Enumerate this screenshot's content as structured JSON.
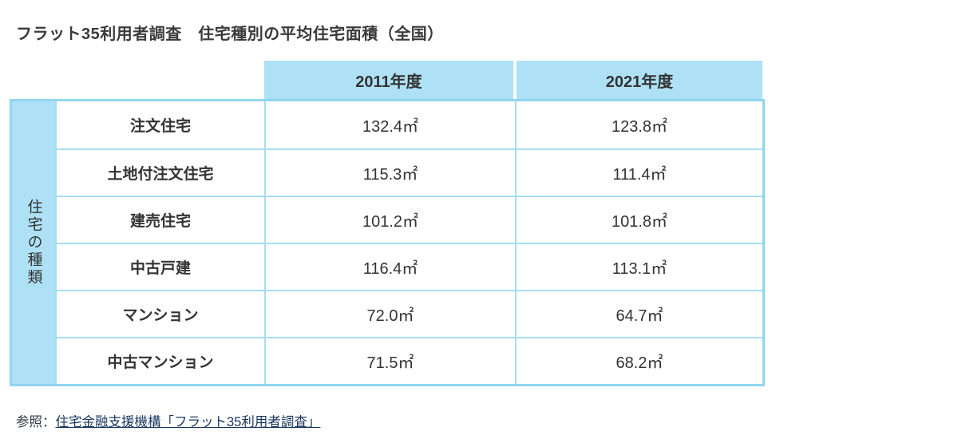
{
  "title": "フラット35利用者調査　住宅種別の平均住宅面積（全国）",
  "table": {
    "side_label": "住宅の種類",
    "column_headers": [
      "2011年度",
      "2021年度"
    ],
    "rows": [
      {
        "label": "注文住宅",
        "y2011": "132.4㎡",
        "y2021": "123.8㎡"
      },
      {
        "label": "土地付注文住宅",
        "y2011": "115.3㎡",
        "y2021": "111.4㎡"
      },
      {
        "label": "建売住宅",
        "y2011": "101.2㎡",
        "y2021": "101.8㎡"
      },
      {
        "label": "中古戸建",
        "y2011": "116.4㎡",
        "y2021": "113.1㎡"
      },
      {
        "label": "マンション",
        "y2011": "72.0㎡",
        "y2021": "64.7㎡"
      },
      {
        "label": "中古マンション",
        "y2011": "71.5㎡",
        "y2021": "68.2㎡"
      }
    ]
  },
  "footer": {
    "prefix": "参照：",
    "link_text": "住宅金融支援機構「フラット35利用者調査」"
  },
  "colors": {
    "header_fill": "#aee1f5",
    "outer_border": "#90d5f0",
    "inner_border": "#a5def3",
    "text": "#333333",
    "link": "#17365d",
    "background": "#ffffff"
  },
  "chart_data": {
    "type": "table",
    "title": "フラット35利用者調査　住宅種別の平均住宅面積（全国）",
    "categories": [
      "注文住宅",
      "土地付注文住宅",
      "建売住宅",
      "中古戸建",
      "マンション",
      "中古マンション"
    ],
    "series": [
      {
        "name": "2011年度",
        "values": [
          132.4,
          115.3,
          101.2,
          116.4,
          72.0,
          71.5
        ]
      },
      {
        "name": "2021年度",
        "values": [
          123.8,
          111.4,
          101.8,
          113.1,
          64.7,
          68.2
        ]
      }
    ],
    "unit": "㎡",
    "row_axis_label": "住宅の種類",
    "source": "住宅金融支援機構「フラット35利用者調査」"
  }
}
